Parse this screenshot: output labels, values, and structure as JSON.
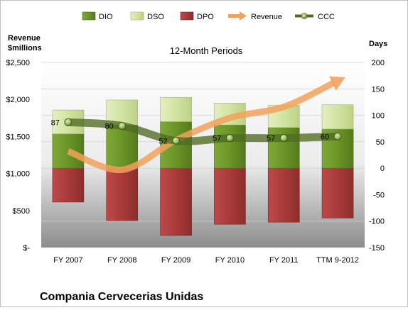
{
  "chart_data": {
    "type": "bar",
    "title": "12-Month Periods",
    "company": "Compania Cervecerias Unidas",
    "left_axis_label_line1": "Revenue",
    "left_axis_label_line2": "$millions",
    "right_axis_label": "Days",
    "categories": [
      "FY 2007",
      "FY 2008",
      "FY 2009",
      "FY 2010",
      "FY 2011",
      "TTM 9-2012"
    ],
    "left_axis": {
      "ylim": [
        0,
        2500
      ],
      "ticks": [
        "$-",
        "$500",
        "$1,000",
        "$1,500",
        "$2,000",
        "$2,500"
      ],
      "tick_values": [
        0,
        500,
        1000,
        1500,
        2000,
        2500
      ]
    },
    "right_axis": {
      "ylim": [
        -150,
        200
      ],
      "ticks": [
        "-150",
        "-100",
        "-50",
        "0",
        "50",
        "100",
        "150",
        "200"
      ],
      "tick_values": [
        -150,
        -100,
        -50,
        0,
        50,
        100,
        150,
        200
      ]
    },
    "series": [
      {
        "name": "DIO",
        "kind": "stacked-bar",
        "color": "#6e9a2c",
        "values": [
          65,
          82,
          88,
          82,
          77,
          74
        ]
      },
      {
        "name": "DSO",
        "kind": "stacked-bar",
        "color": "#d2e3a2",
        "values": [
          45,
          47,
          46,
          41,
          42,
          46
        ]
      },
      {
        "name": "DPO",
        "kind": "negative-bar",
        "color": "#a93a3a",
        "values": [
          -64,
          -99,
          -127,
          -106,
          -102,
          -94
        ]
      },
      {
        "name": "Revenue",
        "kind": "smooth-line",
        "axis": "left",
        "color": "#f2a15c",
        "values": [
          1300,
          1050,
          1450,
          1750,
          1900,
          2250
        ]
      },
      {
        "name": "CCC",
        "kind": "line-with-markers",
        "axis": "right",
        "color": "#4f6b22",
        "values": [
          87,
          80,
          52,
          57,
          57,
          60
        ],
        "labels": [
          "87",
          "80",
          "52",
          "57",
          "57",
          "60"
        ]
      }
    ],
    "grid": true,
    "legend_position": "top"
  }
}
